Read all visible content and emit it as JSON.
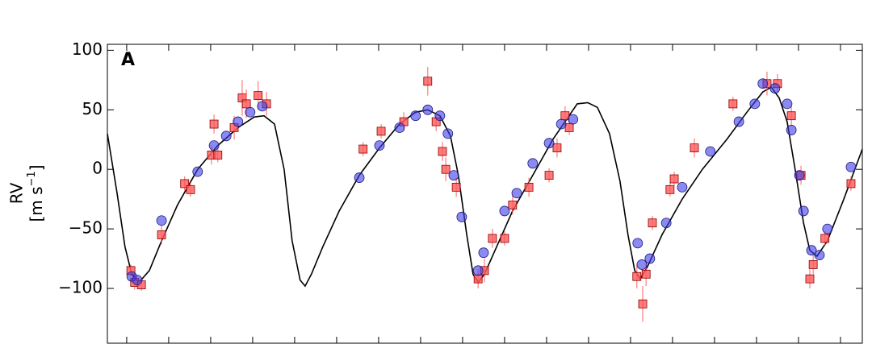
{
  "chart_data": {
    "type": "scatter",
    "panel_label": "A",
    "ylabel": [
      "RV",
      "[m s",
      "−1",
      "]"
    ],
    "xlim": [
      -0.46,
      17.52
    ],
    "xticks": [
      0,
      1,
      2,
      3,
      4,
      5,
      6,
      7,
      8,
      9,
      10,
      11,
      12,
      13,
      14,
      15,
      16,
      17
    ],
    "ylim": [
      -146,
      105
    ],
    "yticks": [
      100,
      50,
      0,
      {
        "value": -50,
        "label": "−50"
      },
      {
        "value": -100,
        "label": "−100"
      }
    ],
    "series": [
      {
        "mode": "line",
        "color": "#000000",
        "x": [
          -0.46,
          -0.23,
          -0.04,
          0.12,
          0.29,
          0.54,
          0.83,
          1.21,
          1.69,
          2.17,
          2.65,
          3.04,
          3.27,
          3.52,
          3.75,
          3.94,
          4.13,
          4.25,
          4.4,
          4.67,
          5.06,
          5.54,
          6.02,
          6.5,
          6.88,
          7.17,
          7.46,
          7.71,
          7.9,
          8.1,
          8.25,
          8.37,
          8.52,
          8.81,
          9.19,
          9.67,
          10.15,
          10.44,
          10.73,
          10.98,
          11.21,
          11.5,
          11.75,
          11.94,
          12.1,
          12.23,
          12.4,
          12.75,
          13.23,
          13.71,
          14.29,
          14.77,
          15.15,
          15.35,
          15.54,
          15.73,
          15.92,
          16.12,
          16.27,
          16.44,
          16.69,
          17.08,
          17.52
        ],
        "values": [
          30,
          -20,
          -65,
          -88,
          -95,
          -85,
          -60,
          -30,
          0,
          20,
          35,
          44,
          45,
          38,
          0,
          -60,
          -93,
          -98,
          -88,
          -65,
          -35,
          -5,
          18,
          38,
          48,
          50,
          45,
          28,
          -5,
          -55,
          -88,
          -95,
          -88,
          -65,
          -35,
          -5,
          25,
          40,
          55,
          56,
          52,
          30,
          -10,
          -55,
          -85,
          -92,
          -82,
          -55,
          -25,
          0,
          25,
          48,
          65,
          69,
          60,
          40,
          0,
          -45,
          -68,
          -73,
          -60,
          -25,
          17
        ]
      },
      {
        "mode": "marker",
        "marker": "square",
        "color": "#ff5a5a",
        "x": [
          0.1,
          0.19,
          0.35,
          0.83,
          1.38,
          1.52,
          2.08,
          2.02,
          2.17,
          2.56,
          2.75,
          2.85,
          3.13,
          3.33,
          5.63,
          6.06,
          6.6,
          7.17,
          7.37,
          7.52,
          7.6,
          7.85,
          8.37,
          8.52,
          8.71,
          9.0,
          9.19,
          9.58,
          10.06,
          10.25,
          10.44,
          10.54,
          12.15,
          12.29,
          12.37,
          12.52,
          12.94,
          13.04,
          13.52,
          14.44,
          15.25,
          15.5,
          15.83,
          16.06,
          16.27,
          16.35,
          16.63,
          17.25
        ],
        "values": [
          -85,
          -95,
          -97,
          -55,
          -12,
          -17,
          38,
          12,
          12,
          35,
          60,
          55,
          62,
          55,
          17,
          32,
          40,
          74,
          40,
          15,
          0,
          -15,
          -92,
          -85,
          -58,
          -58,
          -30,
          -15,
          -5,
          18,
          45,
          35,
          -90,
          -113,
          -88,
          -45,
          -17,
          -8,
          18,
          55,
          72,
          72,
          45,
          -5,
          -92,
          -80,
          -58,
          -12
        ],
        "errors": [
          5,
          6,
          5,
          8,
          6,
          6,
          8,
          8,
          6,
          10,
          15,
          12,
          12,
          10,
          6,
          6,
          8,
          12,
          8,
          8,
          10,
          8,
          8,
          10,
          8,
          6,
          8,
          8,
          6,
          8,
          8,
          6,
          10,
          15,
          10,
          6,
          6,
          6,
          8,
          6,
          10,
          8,
          8,
          8,
          8,
          8,
          6,
          6
        ]
      },
      {
        "mode": "marker",
        "marker": "circle",
        "color": "#3c3ce6",
        "x": [
          0.12,
          0.25,
          0.83,
          1.69,
          2.08,
          2.37,
          2.65,
          2.94,
          3.23,
          5.54,
          6.02,
          6.5,
          6.88,
          7.17,
          7.46,
          7.65,
          7.79,
          7.98,
          8.37,
          8.5,
          9.0,
          9.29,
          9.67,
          10.06,
          10.35,
          10.63,
          12.17,
          12.27,
          12.46,
          12.85,
          13.23,
          13.9,
          14.58,
          14.96,
          15.15,
          15.44,
          15.73,
          15.83,
          16.02,
          16.12,
          16.31,
          16.5,
          16.69,
          17.25
        ],
        "values": [
          -90,
          -93,
          -43,
          -2,
          20,
          28,
          40,
          48,
          53,
          -7,
          20,
          35,
          45,
          50,
          45,
          30,
          -5,
          -40,
          -85,
          -70,
          -35,
          -20,
          5,
          22,
          38,
          42,
          -62,
          -80,
          -75,
          -45,
          -15,
          15,
          40,
          55,
          72,
          68,
          55,
          33,
          -5,
          -35,
          -68,
          -72,
          -50,
          2
        ]
      }
    ]
  }
}
